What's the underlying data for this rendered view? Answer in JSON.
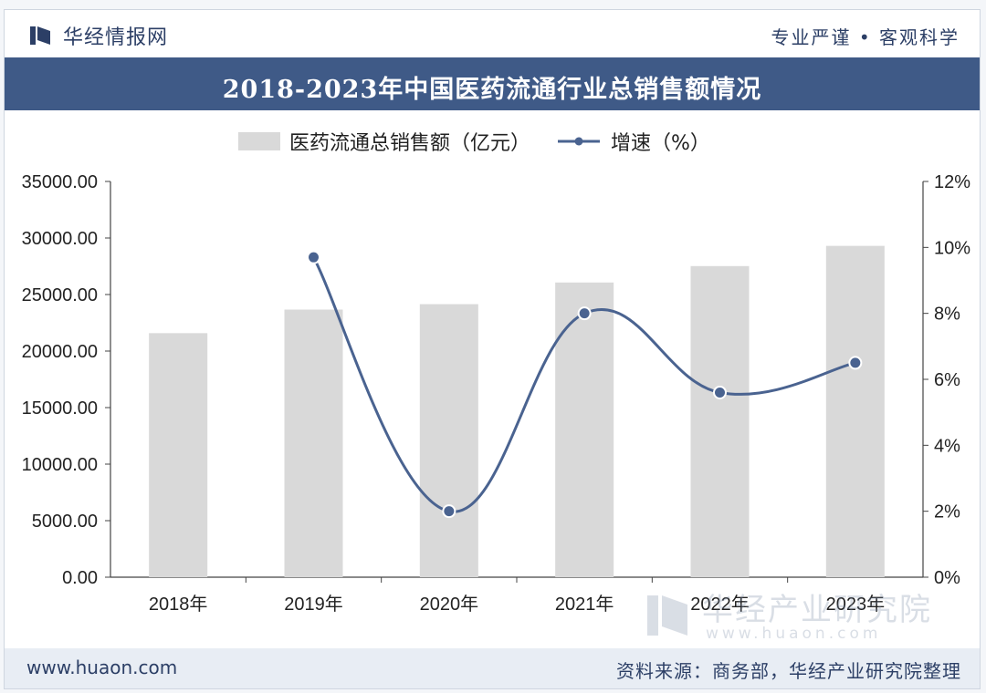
{
  "header": {
    "brand": "华经情报网",
    "slogan": "专业严谨 • 客观科学"
  },
  "title": "2018-2023年中国医药流通行业总销售额情况",
  "legend": {
    "bar_label": "医药流通总销售额（亿元）",
    "line_label": "增速（%）"
  },
  "footer": {
    "website": "www.huaon.com",
    "source": "资料来源：商务部，华经产业研究院整理"
  },
  "watermark": {
    "text_cn": "华经产业研究院",
    "text_en": "www.huaon.com"
  },
  "colors": {
    "bar": "#d9d9d9",
    "line": "#4a6390",
    "marker_fill": "#4a6390",
    "marker_stroke": "#ffffff",
    "title_bar": "#3f5a87"
  },
  "chart_data": {
    "type": "bar",
    "categories": [
      "2018年",
      "2019年",
      "2020年",
      "2021年",
      "2022年",
      "2023年"
    ],
    "series": [
      {
        "name": "医药流通总销售额（亿元）",
        "type": "bar",
        "axis": "left",
        "values": [
          21586,
          23668,
          24149,
          26064,
          27516,
          29304
        ]
      },
      {
        "name": "增速（%）",
        "type": "line",
        "axis": "right",
        "values": [
          null,
          9.7,
          2.0,
          8.0,
          5.6,
          6.5
        ]
      }
    ],
    "y_left": {
      "ylim": [
        0,
        35000
      ],
      "ticks": [
        "0.00",
        "5000.00",
        "10000.00",
        "15000.00",
        "20000.00",
        "25000.00",
        "30000.00",
        "35000.00"
      ]
    },
    "y_right": {
      "ylim": [
        0,
        12
      ],
      "ticks": [
        "0%",
        "2%",
        "4%",
        "6%",
        "8%",
        "10%",
        "12%"
      ]
    },
    "grid": false,
    "legend_position": "top"
  }
}
